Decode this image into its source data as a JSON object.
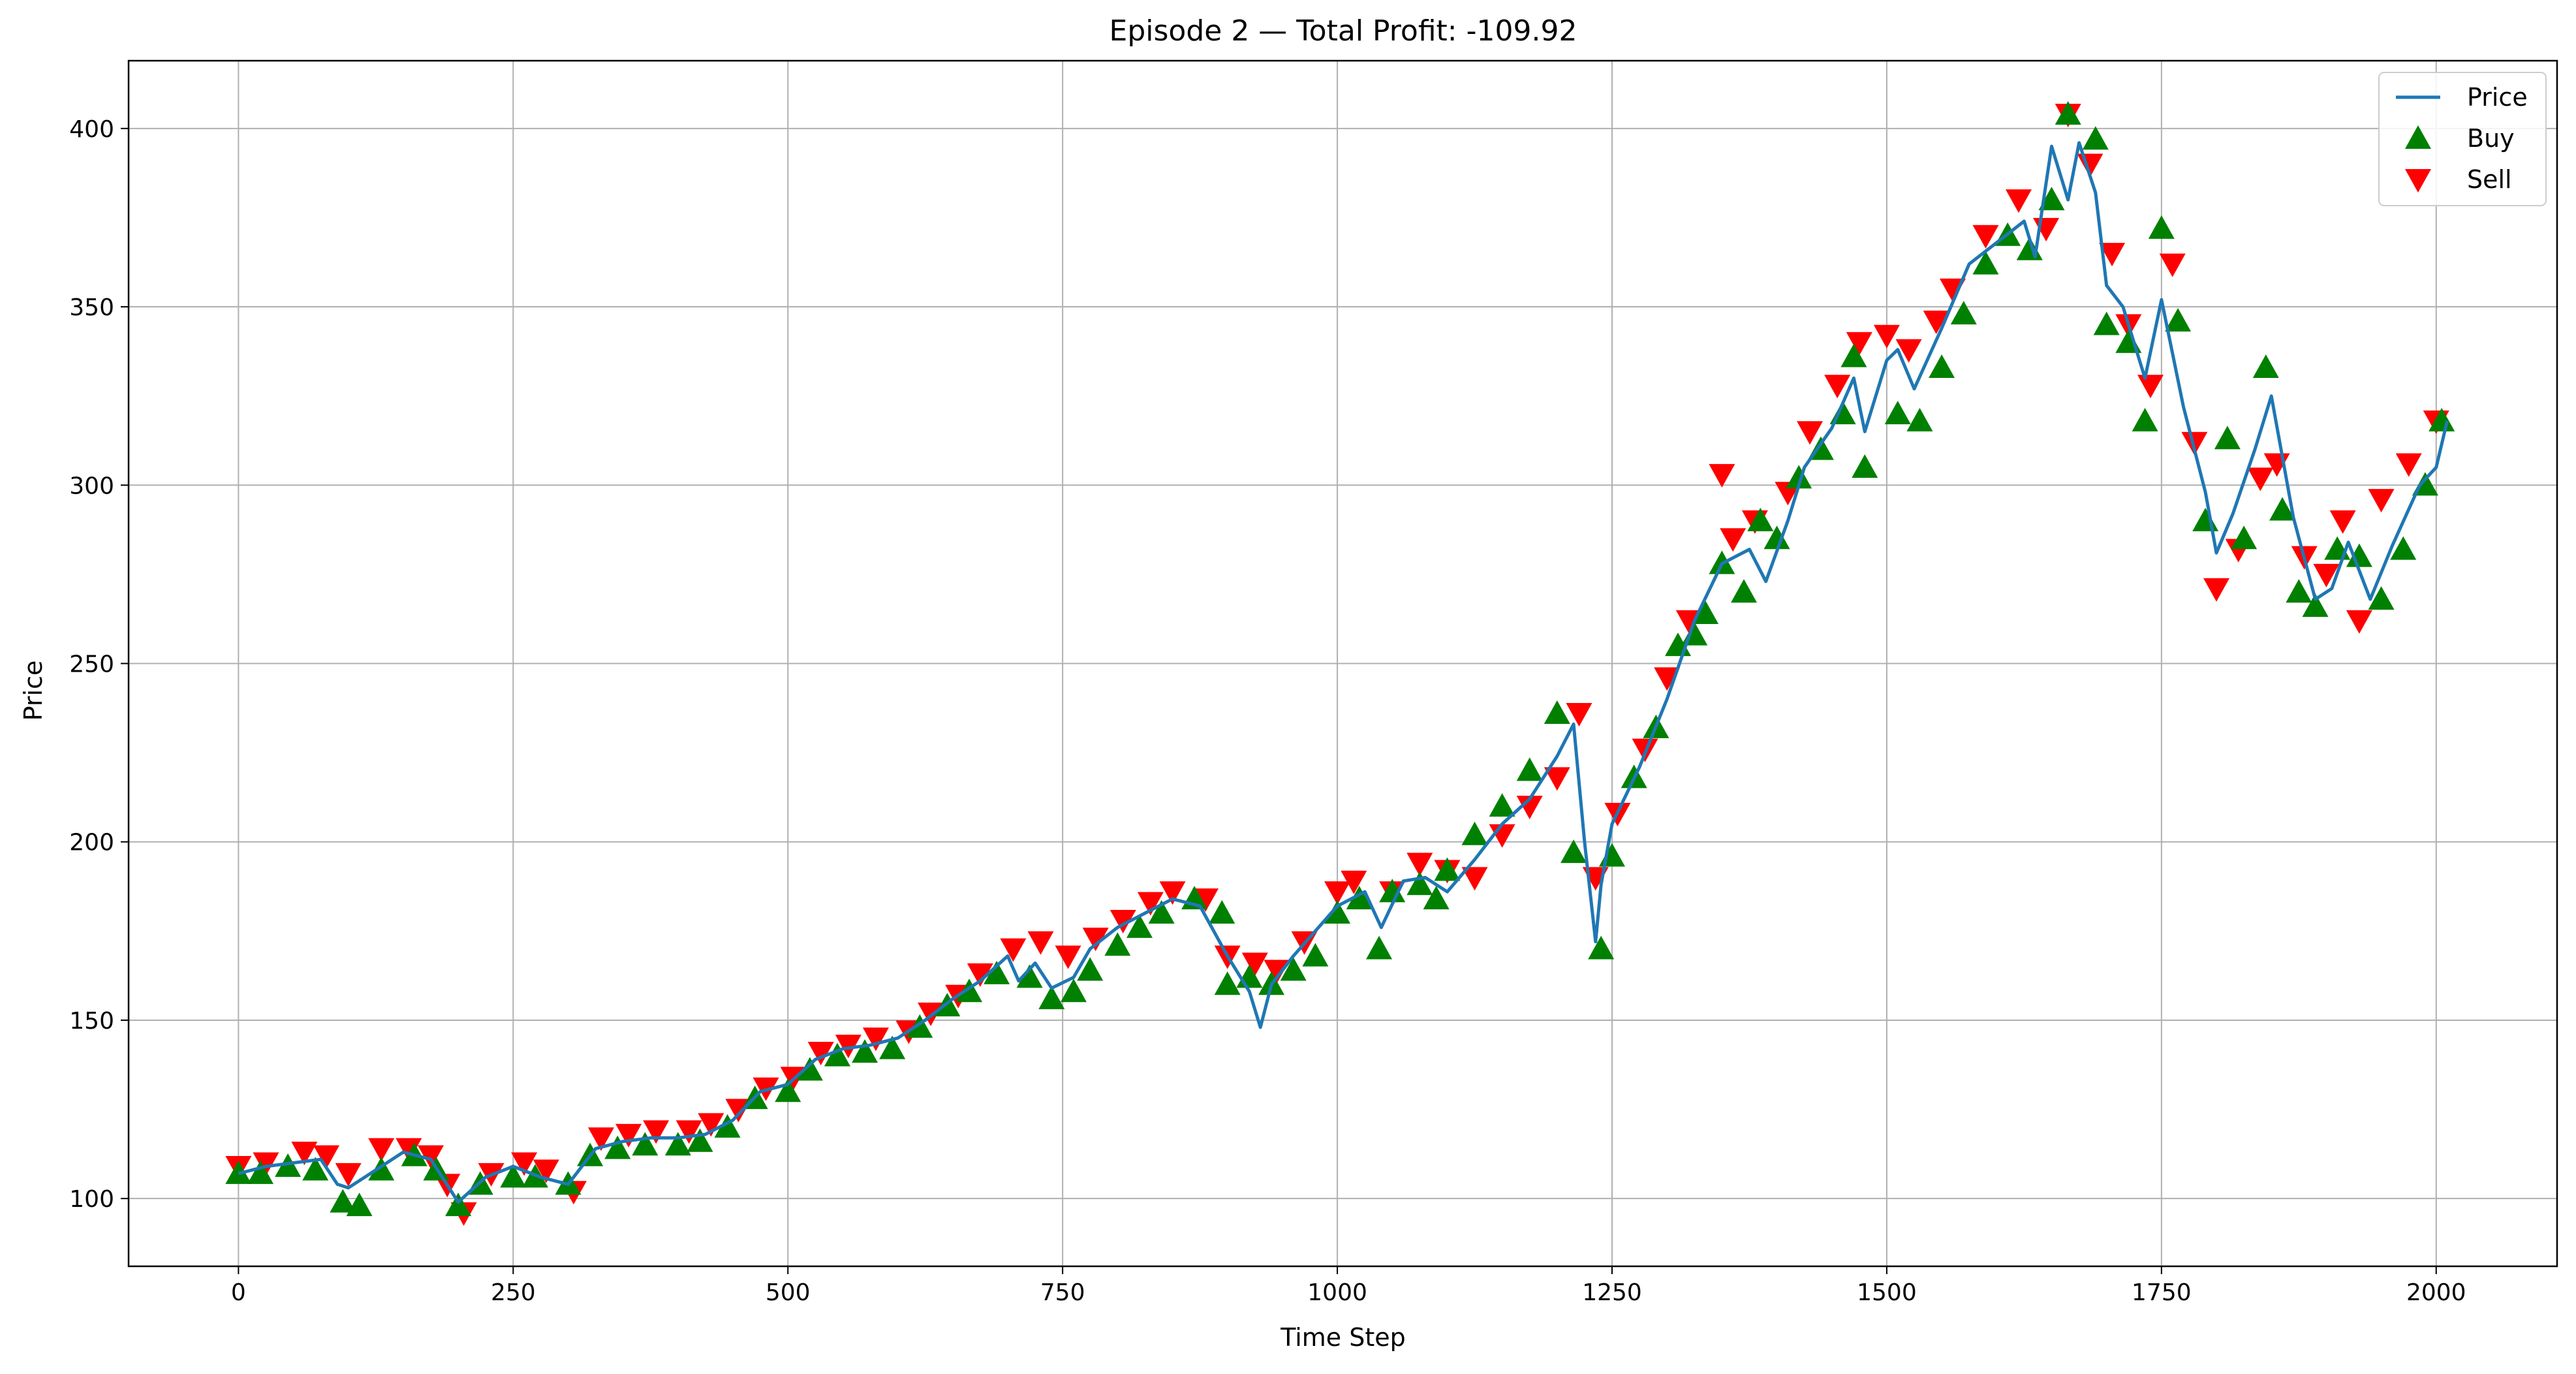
{
  "chart_data": {
    "type": "line",
    "title": "Episode 2 — Total Profit: -109.92",
    "xlabel": "Time Step",
    "ylabel": "Price",
    "xlim": [
      -100,
      2110
    ],
    "ylim": [
      81,
      419
    ],
    "grid": true,
    "legend_position": "top-right",
    "x_ticks": [
      0,
      250,
      500,
      750,
      1000,
      1250,
      1500,
      1750,
      2000
    ],
    "y_ticks": [
      100,
      150,
      200,
      250,
      300,
      350,
      400
    ],
    "x_tick_labels": [
      "0",
      "250",
      "500",
      "750",
      "1000",
      "1250",
      "1500",
      "1750",
      "2000"
    ],
    "y_tick_labels": [
      "100",
      "150",
      "200",
      "250",
      "300",
      "350",
      "400"
    ],
    "legend": [
      {
        "label": "Price",
        "marker": "line",
        "color": "#1f77b4"
      },
      {
        "label": "Buy",
        "marker": "triangle-up",
        "color": "#008000"
      },
      {
        "label": "Sell",
        "marker": "triangle-down",
        "color": "#ff0000"
      }
    ],
    "series": [
      {
        "name": "Price",
        "color": "#1f77b4",
        "x": [
          0,
          25,
          50,
          75,
          90,
          100,
          125,
          150,
          175,
          200,
          225,
          250,
          275,
          300,
          325,
          350,
          375,
          400,
          425,
          450,
          475,
          500,
          525,
          550,
          575,
          600,
          625,
          650,
          675,
          700,
          710,
          725,
          740,
          760,
          775,
          800,
          825,
          850,
          875,
          900,
          920,
          930,
          940,
          960,
          1000,
          1025,
          1040,
          1060,
          1080,
          1100,
          1125,
          1150,
          1175,
          1200,
          1215,
          1225,
          1235,
          1240,
          1250,
          1275,
          1300,
          1325,
          1350,
          1375,
          1390,
          1410,
          1425,
          1450,
          1470,
          1480,
          1500,
          1510,
          1525,
          1550,
          1575,
          1600,
          1625,
          1635,
          1650,
          1665,
          1675,
          1690,
          1700,
          1715,
          1735,
          1750,
          1770,
          1790,
          1800,
          1815,
          1835,
          1850,
          1870,
          1890,
          1905,
          1920,
          1940,
          1960,
          1985,
          2000,
          2010
        ],
        "y": [
          107,
          109,
          110,
          111,
          104,
          103,
          108,
          113,
          111,
          99,
          106,
          109,
          106,
          104,
          114,
          116,
          117,
          117,
          118,
          122,
          130,
          132,
          139,
          142,
          143,
          145,
          150,
          156,
          161,
          168,
          161,
          166,
          159,
          162,
          170,
          176,
          180,
          184,
          182,
          168,
          158,
          148,
          160,
          168,
          182,
          186,
          176,
          189,
          190,
          186,
          195,
          205,
          212,
          224,
          233,
          200,
          172,
          188,
          205,
          221,
          240,
          262,
          278,
          282,
          273,
          290,
          305,
          316,
          330,
          315,
          335,
          338,
          327,
          344,
          362,
          368,
          374,
          364,
          395,
          380,
          396,
          382,
          356,
          350,
          330,
          352,
          322,
          298,
          281,
          292,
          310,
          325,
          291,
          268,
          271,
          284,
          268,
          283,
          300,
          305,
          318
        ]
      },
      {
        "name": "Buy",
        "color": "#008000",
        "x": [
          0,
          20,
          45,
          70,
          95,
          110,
          130,
          160,
          180,
          200,
          220,
          250,
          270,
          300,
          320,
          345,
          370,
          400,
          420,
          445,
          470,
          500,
          520,
          545,
          570,
          595,
          620,
          645,
          665,
          690,
          720,
          740,
          760,
          775,
          800,
          820,
          840,
          870,
          895,
          900,
          920,
          940,
          960,
          980,
          1000,
          1020,
          1038,
          1050,
          1075,
          1090,
          1100,
          1125,
          1150,
          1175,
          1200,
          1215,
          1240,
          1250,
          1270,
          1290,
          1310,
          1325,
          1335,
          1350,
          1370,
          1385,
          1400,
          1420,
          1440,
          1460,
          1470,
          1480,
          1510,
          1530,
          1550,
          1570,
          1590,
          1610,
          1630,
          1650,
          1665,
          1690,
          1700,
          1720,
          1735,
          1750,
          1765,
          1790,
          1810,
          1825,
          1845,
          1860,
          1875,
          1890,
          1910,
          1930,
          1950,
          1970,
          1990,
          2005
        ],
        "y": [
          107,
          107,
          109,
          108,
          99,
          98,
          108,
          112,
          108,
          98,
          104,
          106,
          106,
          104,
          112,
          114,
          115,
          115,
          116,
          120,
          128,
          130,
          136,
          140,
          141,
          142,
          148,
          154,
          158,
          163,
          162,
          156,
          158,
          164,
          171,
          176,
          180,
          184,
          180,
          160,
          162,
          160,
          164,
          168,
          180,
          184,
          170,
          186,
          188,
          184,
          192,
          202,
          210,
          220,
          236,
          197,
          170,
          196,
          218,
          232,
          255,
          258,
          264,
          278,
          270,
          290,
          285,
          302,
          310,
          320,
          336,
          305,
          320,
          318,
          333,
          348,
          362,
          370,
          366,
          380,
          404,
          397,
          345,
          340,
          318,
          372,
          346,
          290,
          313,
          285,
          333,
          293,
          270,
          266,
          282,
          280,
          268,
          282,
          300,
          318
        ]
      },
      {
        "name": "Sell",
        "color": "#ff0000",
        "x": [
          0,
          25,
          60,
          80,
          100,
          130,
          155,
          175,
          190,
          205,
          230,
          260,
          280,
          305,
          330,
          355,
          380,
          410,
          430,
          455,
          480,
          505,
          530,
          555,
          580,
          610,
          630,
          655,
          675,
          705,
          730,
          755,
          780,
          805,
          830,
          850,
          880,
          900,
          925,
          945,
          970,
          1000,
          1015,
          1050,
          1075,
          1100,
          1125,
          1150,
          1175,
          1200,
          1220,
          1235,
          1255,
          1280,
          1300,
          1320,
          1350,
          1360,
          1380,
          1410,
          1430,
          1455,
          1475,
          1500,
          1520,
          1545,
          1560,
          1590,
          1620,
          1645,
          1665,
          1685,
          1705,
          1720,
          1740,
          1760,
          1780,
          1800,
          1820,
          1840,
          1855,
          1880,
          1900,
          1915,
          1930,
          1950,
          1975,
          2000
        ],
        "y": [
          109,
          110,
          113,
          112,
          107,
          114,
          114,
          112,
          104,
          96,
          107,
          110,
          108,
          102,
          117,
          118,
          119,
          119,
          121,
          125,
          131,
          134,
          141,
          143,
          145,
          147,
          152,
          157,
          163,
          170,
          172,
          168,
          173,
          178,
          183,
          186,
          184,
          168,
          166,
          164,
          172,
          186,
          189,
          186,
          194,
          192,
          190,
          202,
          210,
          218,
          236,
          190,
          208,
          226,
          246,
          262,
          303,
          285,
          290,
          298,
          315,
          328,
          340,
          342,
          338,
          346,
          355,
          370,
          380,
          372,
          404,
          390,
          365,
          345,
          328,
          362,
          312,
          271,
          282,
          302,
          306,
          280,
          275,
          290,
          262,
          296,
          306,
          318
        ]
      }
    ]
  }
}
